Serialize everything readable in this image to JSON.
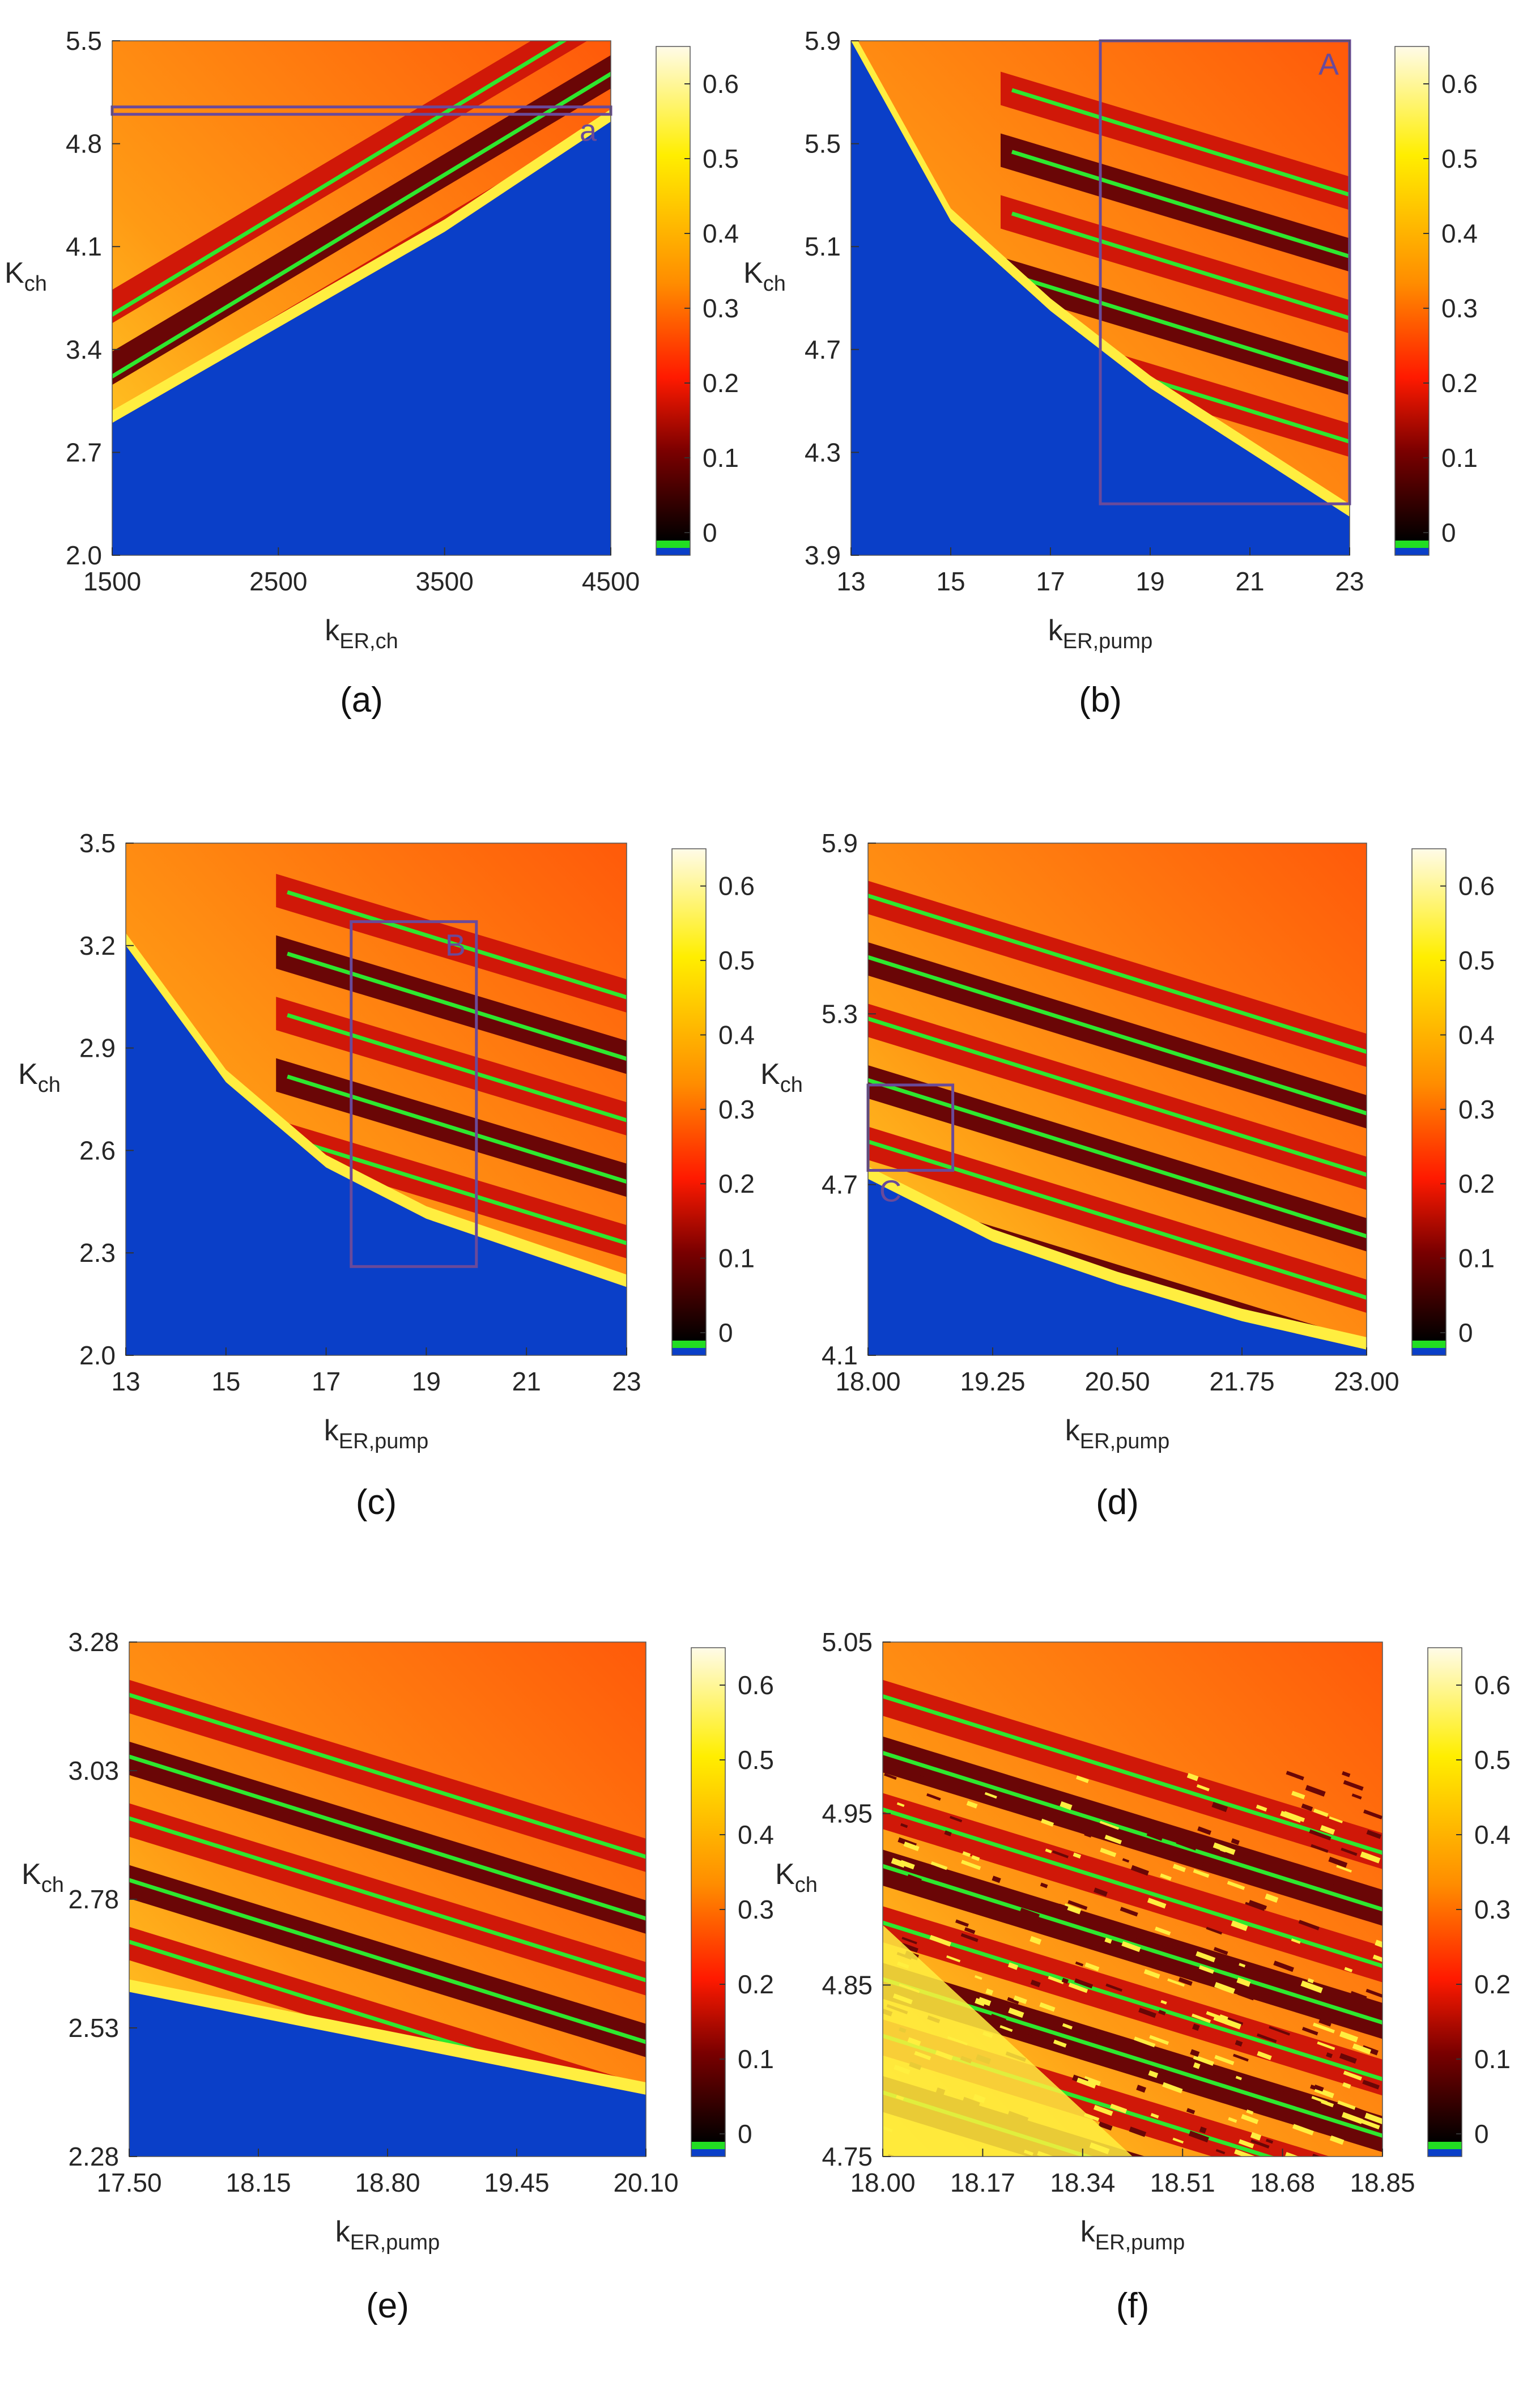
{
  "figure": {
    "colorscale": {
      "ticks": [
        "0",
        "0.1",
        "0.2",
        "0.3",
        "0.4",
        "0.5",
        "0.6"
      ],
      "tick_values": [
        0,
        0.1,
        0.2,
        0.3,
        0.4,
        0.5,
        0.6
      ],
      "max": 0.65,
      "special_colors": {
        "periodic": "#22dd22",
        "no_oscillation": "#0a3fc8"
      }
    },
    "region_colors": {
      "no_oscillation": "#0a3fc8",
      "background": "#ff6a10",
      "chaotic_bands": "#d01808",
      "dark_bands": "#6a0606",
      "periodic_windows": "#2ee82e",
      "edge": "#ffee40"
    }
  },
  "chart_data": [
    {
      "type": "heatmap",
      "panel": "a",
      "caption": "(a)",
      "xlabel": {
        "main": "k",
        "sub": "ER,ch"
      },
      "ylabel": {
        "main": "K",
        "sub": "ch"
      },
      "xlim": [
        1500,
        4500
      ],
      "ylim": [
        2.0,
        5.5
      ],
      "xticks": [
        "1500",
        "2500",
        "3500",
        "4500"
      ],
      "yticks": [
        "2.0",
        "2.7",
        "3.4",
        "4.1",
        "4.8",
        "5.5"
      ],
      "inset_box": {
        "label": "a",
        "x": [
          1500,
          4500
        ],
        "y": [
          5.0,
          5.05
        ]
      },
      "blue_boundary": [
        [
          1500,
          2.9
        ],
        [
          2500,
          3.55
        ],
        [
          3500,
          4.2
        ],
        [
          4500,
          4.95
        ]
      ],
      "band_count": 6
    },
    {
      "type": "heatmap",
      "panel": "b",
      "caption": "(b)",
      "xlabel": {
        "main": "k",
        "sub": "ER,pump"
      },
      "ylabel": {
        "main": "K",
        "sub": "ch"
      },
      "xlim": [
        13,
        23
      ],
      "ylim": [
        3.9,
        5.9
      ],
      "xticks": [
        "13",
        "15",
        "17",
        "19",
        "21",
        "23"
      ],
      "yticks": [
        "3.9",
        "4.3",
        "4.7",
        "5.1",
        "5.5",
        "5.9"
      ],
      "inset_box": {
        "label": "A",
        "x": [
          18,
          23
        ],
        "y": [
          4.1,
          5.9
        ]
      },
      "blue_boundary": [
        [
          13,
          5.9
        ],
        [
          15,
          5.2
        ],
        [
          17,
          4.85
        ],
        [
          19,
          4.55
        ],
        [
          21,
          4.3
        ],
        [
          23,
          4.05
        ]
      ],
      "band_count": 5
    },
    {
      "type": "heatmap",
      "panel": "c",
      "caption": "(c)",
      "xlabel": {
        "main": "k",
        "sub": "ER,pump"
      },
      "ylabel": {
        "main": "K",
        "sub": "ch"
      },
      "xlim": [
        13,
        23
      ],
      "ylim": [
        2.0,
        3.5
      ],
      "xticks": [
        "13",
        "15",
        "17",
        "19",
        "21",
        "23"
      ],
      "yticks": [
        "2.0",
        "2.3",
        "2.6",
        "2.9",
        "3.2",
        "3.5"
      ],
      "inset_box": {
        "label": "B",
        "x": [
          17.5,
          20.0
        ],
        "y": [
          2.26,
          3.27
        ]
      },
      "blue_boundary": [
        [
          13,
          3.2
        ],
        [
          15,
          2.8
        ],
        [
          17,
          2.55
        ],
        [
          19,
          2.4
        ],
        [
          21,
          2.3
        ],
        [
          23,
          2.2
        ]
      ],
      "band_count": 5
    },
    {
      "type": "heatmap",
      "panel": "d",
      "caption": "(d)",
      "xlabel": {
        "main": "k",
        "sub": "ER,pump"
      },
      "ylabel": {
        "main": "K",
        "sub": "ch"
      },
      "xlim": [
        18.0,
        23.0
      ],
      "ylim": [
        4.1,
        5.9
      ],
      "xticks": [
        "18.00",
        "19.25",
        "20.50",
        "21.75",
        "23.00"
      ],
      "yticks": [
        "4.1",
        "4.7",
        "5.3",
        "5.9"
      ],
      "inset_box": {
        "label": "C",
        "x": [
          18.0,
          18.85
        ],
        "y": [
          4.75,
          5.05
        ]
      },
      "blue_boundary": [
        [
          18.0,
          4.72
        ],
        [
          19.25,
          4.5
        ],
        [
          20.5,
          4.35
        ],
        [
          21.75,
          4.22
        ],
        [
          23.0,
          4.12
        ]
      ],
      "band_count": 6
    },
    {
      "type": "heatmap",
      "panel": "e",
      "caption": "(e)",
      "xlabel": {
        "main": "k",
        "sub": "ER,pump"
      },
      "ylabel": {
        "main": "K",
        "sub": "ch"
      },
      "xlim": [
        17.5,
        20.1
      ],
      "ylim": [
        2.28,
        3.28
      ],
      "xticks": [
        "17.50",
        "18.15",
        "18.80",
        "19.45",
        "20.10"
      ],
      "yticks": [
        "2.28",
        "2.53",
        "2.78",
        "3.03",
        "3.28"
      ],
      "blue_boundary": [
        [
          17.5,
          2.6
        ],
        [
          18.15,
          2.55
        ],
        [
          18.8,
          2.5
        ],
        [
          19.45,
          2.45
        ],
        [
          20.1,
          2.4
        ]
      ],
      "band_count": 5
    },
    {
      "type": "heatmap",
      "panel": "f",
      "caption": "(f)",
      "xlabel": {
        "main": "k",
        "sub": "ER,pump"
      },
      "ylabel": {
        "main": "K",
        "sub": "ch"
      },
      "xlim": [
        18.0,
        18.85
      ],
      "ylim": [
        4.75,
        5.05
      ],
      "xticks": [
        "18.00",
        "18.17",
        "18.34",
        "18.51",
        "18.68",
        "18.85"
      ],
      "yticks": [
        "4.75",
        "4.85",
        "4.95",
        "5.05"
      ],
      "blue_boundary": [],
      "band_count": 8
    }
  ]
}
